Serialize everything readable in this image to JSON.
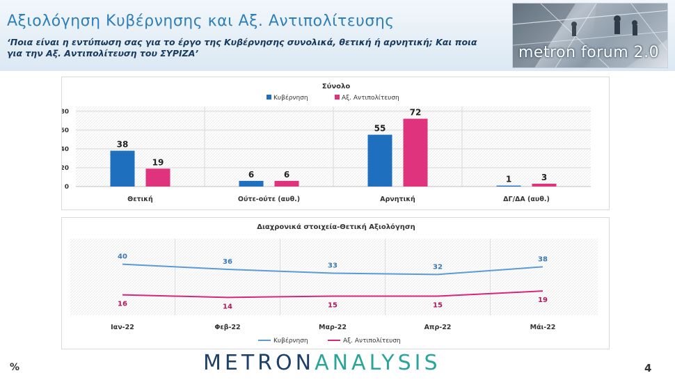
{
  "header": {
    "title": "Αξιολόγηση Κυβέρνησης και Αξ. Αντιπολίτευσης",
    "subtitle": "‘Ποια είναι η εντύπωση σας για το έργο της Κυβέρνησης συνολικά, θετική ή αρνητική; Και ποια για την Αξ. Αντιπολίτευση του ΣΥΡΙΖΑ’",
    "forum_logo_text": "metron forum 2.0"
  },
  "footer": {
    "percent_sign": "%",
    "brand_part1": "METRON",
    "brand_part2": "ANALYSIS",
    "page_number": "4"
  },
  "colors": {
    "government": "#1f6fbf",
    "opposition": "#e0337e",
    "title": "#2e7fb8",
    "gov_line": "#5a9bd5",
    "opp_line": "#d6257a"
  },
  "chart_data": [
    {
      "type": "bar",
      "title": "Σύνολο",
      "categories": [
        "Θετική",
        "Ούτε-ούτε (αυθ.)",
        "Αρνητική",
        "ΔΓ/ΔΑ (αυθ.)"
      ],
      "series": [
        {
          "name": "Κυβέρνηση",
          "values": [
            38,
            6,
            55,
            1
          ]
        },
        {
          "name": "Αξ. Αντιπολίτευση",
          "values": [
            19,
            6,
            72,
            3
          ]
        }
      ],
      "yticks": [
        0,
        20,
        40,
        60,
        80
      ],
      "ylim": [
        0,
        85
      ],
      "legend": "top",
      "grid": true
    },
    {
      "type": "line",
      "title": "Διαχρονικά στοιχεία-Θετική Αξιολόγηση",
      "x": [
        "Ιαν-22",
        "Φεβ-22",
        "Μαρ-22",
        "Απρ-22",
        "Μάι-22"
      ],
      "series": [
        {
          "name": "Κυβέρνηση",
          "values": [
            40,
            36,
            33,
            32,
            38
          ]
        },
        {
          "name": "Αξ. Αντιπολίτευση",
          "values": [
            16,
            14,
            15,
            15,
            19
          ]
        }
      ],
      "ylim": [
        0,
        60
      ],
      "legend": "bottom",
      "grid": true
    }
  ]
}
